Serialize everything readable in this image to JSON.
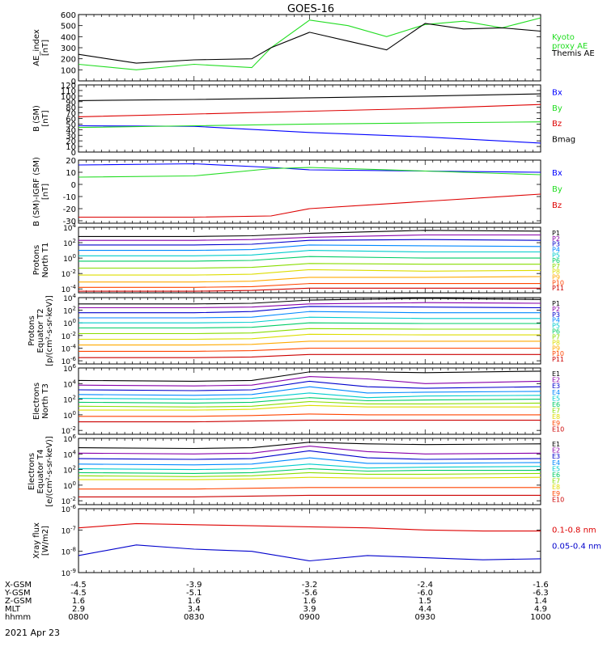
{
  "title": "GOES-16",
  "date_label": "2021 Apr 23",
  "orbit_table": {
    "row_labels": [
      "X-GSM",
      "Y-GSM",
      "Z-GSM",
      "MLT",
      "hhmm"
    ],
    "columns": [
      [
        "-4.5",
        "-4.5",
        "1.6",
        "2.9",
        "0800"
      ],
      [
        "-3.9",
        "-5.1",
        "1.6",
        "3.4",
        "0830"
      ],
      [
        "-3.2",
        "-5.6",
        "1.6",
        "3.9",
        "0900"
      ],
      [
        "-2.4",
        "-6.0",
        "1.5",
        "4.4",
        "0930"
      ],
      [
        "-1.6",
        "-6.3",
        "1.4",
        "4.9",
        "1000"
      ]
    ]
  },
  "chart_data": [
    {
      "type": "line",
      "ylabel": "AE_index\n[nT]",
      "ylim": [
        0,
        600
      ],
      "yticks": [
        0,
        100,
        200,
        300,
        400,
        500,
        600
      ],
      "tick_labels": [
        "0",
        "100",
        "200",
        "300",
        "400",
        "500",
        "600"
      ],
      "x": [
        "0800",
        "0815",
        "0830",
        "0845",
        "0850",
        "0900",
        "0910",
        "0920",
        "0930",
        "0940",
        "0950",
        "1000"
      ],
      "series": [
        {
          "name": "Kyoto\nproxy AE",
          "color": "#22dd22",
          "values": [
            150,
            100,
            150,
            120,
            300,
            550,
            500,
            400,
            510,
            540,
            480,
            570
          ]
        },
        {
          "name": "Themis AE",
          "color": "#000000",
          "values": [
            240,
            160,
            190,
            200,
            300,
            440,
            360,
            280,
            520,
            470,
            480,
            450
          ]
        }
      ]
    },
    {
      "type": "line",
      "ylabel": "B (SM)\n[nT]",
      "ylim": [
        0,
        120
      ],
      "yticks": [
        0,
        10,
        20,
        30,
        40,
        50,
        60,
        70,
        80,
        90,
        100,
        110,
        120
      ],
      "tick_labels": [
        "0",
        "10",
        "20",
        "30",
        "40",
        "50",
        "60",
        "70",
        "80",
        "90",
        "100",
        "110",
        "120"
      ],
      "x": [
        "0800",
        "0830",
        "0900",
        "0930",
        "1000"
      ],
      "series": [
        {
          "name": "Bx",
          "color": "#0000ff",
          "values": [
            47,
            46,
            35,
            27,
            16
          ]
        },
        {
          "name": "By",
          "color": "#22dd22",
          "values": [
            44,
            47,
            50,
            52,
            54
          ]
        },
        {
          "name": "Bz",
          "color": "#dd0000",
          "values": [
            63,
            68,
            73,
            78,
            85
          ]
        },
        {
          "name": "Bmag",
          "color": "#000000",
          "values": [
            92,
            94,
            97,
            100,
            104
          ]
        }
      ]
    },
    {
      "type": "line",
      "ylabel": "B (SM)-IGRF (SM)\n[nT]",
      "ylim": [
        -32,
        20
      ],
      "yticks": [
        -30,
        -20,
        -10,
        0,
        10,
        20
      ],
      "tick_labels": [
        "-30",
        "-20",
        "-10",
        "0",
        "10",
        "20"
      ],
      "x": [
        "0800",
        "0830",
        "0850",
        "0900",
        "0930",
        "1000"
      ],
      "series": [
        {
          "name": "Bx",
          "color": "#0000ff",
          "values": [
            16,
            17,
            14,
            12,
            11,
            10
          ]
        },
        {
          "name": "By",
          "color": "#22dd22",
          "values": [
            6,
            7,
            13,
            14,
            11,
            8
          ]
        },
        {
          "name": "Bz",
          "color": "#dd0000",
          "values": [
            -27,
            -27,
            -26,
            -20,
            -14,
            -8
          ]
        }
      ]
    },
    {
      "type": "line",
      "log": true,
      "ylabel": "Protons\nNorth T1",
      "ylim": [
        -4.5,
        4
      ],
      "yticks": [
        -4,
        -2,
        0,
        2,
        4
      ],
      "tick_labels": [
        "10-4",
        "10-2",
        "100",
        "102",
        "104"
      ],
      "x": [
        "0800",
        "0830",
        "0845",
        "0900",
        "0930",
        "1000"
      ],
      "series": [
        {
          "name": "P1",
          "color": "#000000",
          "values": [
            2.8,
            2.8,
            2.9,
            3.2,
            3.6,
            3.5
          ]
        },
        {
          "name": "P2",
          "color": "#8800aa",
          "values": [
            2.3,
            2.3,
            2.4,
            2.7,
            3.0,
            3.0
          ]
        },
        {
          "name": "P3",
          "color": "#0000cc",
          "values": [
            1.7,
            1.7,
            1.8,
            2.3,
            2.4,
            2.3
          ]
        },
        {
          "name": "P4",
          "color": "#0088ff",
          "values": [
            1.0,
            1.0,
            1.1,
            1.7,
            1.6,
            1.5
          ]
        },
        {
          "name": "P5",
          "color": "#00cccc",
          "values": [
            0.3,
            0.3,
            0.4,
            1.0,
            0.8,
            0.8
          ]
        },
        {
          "name": "P6",
          "color": "#00cc66",
          "values": [
            -0.4,
            -0.4,
            -0.3,
            0.2,
            0.0,
            0.0
          ]
        },
        {
          "name": "P7",
          "color": "#88dd00",
          "values": [
            -1.3,
            -1.3,
            -1.2,
            -0.7,
            -0.8,
            -0.8
          ]
        },
        {
          "name": "P8",
          "color": "#dddd00",
          "values": [
            -2.2,
            -2.2,
            -2.1,
            -1.5,
            -1.7,
            -1.6
          ]
        },
        {
          "name": "P9",
          "color": "#ffaa00",
          "values": [
            -3.1,
            -3.1,
            -3.0,
            -2.5,
            -2.5,
            -2.4
          ]
        },
        {
          "name": "P10",
          "color": "#ff4400",
          "values": [
            -3.8,
            -3.8,
            -3.7,
            -3.3,
            -3.3,
            -3.3
          ]
        },
        {
          "name": "P11",
          "color": "#cc0000",
          "values": [
            -4.3,
            -4.3,
            -4.2,
            -3.9,
            -3.9,
            -3.9
          ]
        }
      ]
    },
    {
      "type": "line",
      "log": true,
      "ylabel": "Protons\nEquator T2\n[p/(cm²-s-sr-keV)]",
      "ylim": [
        -6.5,
        4
      ],
      "yticks": [
        -6,
        -4,
        -2,
        0,
        2,
        4
      ],
      "tick_labels": [
        "10-6",
        "10-4",
        "10-2",
        "100",
        "102",
        "104"
      ],
      "x": [
        "0800",
        "0830",
        "0845",
        "0900",
        "0930",
        "1000"
      ],
      "series": [
        {
          "name": "P1",
          "color": "#000000",
          "values": [
            3.0,
            3.0,
            3.1,
            3.6,
            3.9,
            3.7
          ]
        },
        {
          "name": "P2",
          "color": "#8800aa",
          "values": [
            2.4,
            2.4,
            2.5,
            3.0,
            3.2,
            3.1
          ]
        },
        {
          "name": "P3",
          "color": "#0000cc",
          "values": [
            1.6,
            1.6,
            1.8,
            2.6,
            2.5,
            2.4
          ]
        },
        {
          "name": "P4",
          "color": "#0088ff",
          "values": [
            0.8,
            0.8,
            0.9,
            1.8,
            1.6,
            1.6
          ]
        },
        {
          "name": "P5",
          "color": "#00cccc",
          "values": [
            0.0,
            0.0,
            0.1,
            0.9,
            0.7,
            0.7
          ]
        },
        {
          "name": "P6",
          "color": "#00cc66",
          "values": [
            -0.8,
            -0.8,
            -0.7,
            0.0,
            -0.1,
            -0.1
          ]
        },
        {
          "name": "P7",
          "color": "#88dd00",
          "values": [
            -1.7,
            -1.7,
            -1.6,
            -0.9,
            -1.0,
            -1.0
          ]
        },
        {
          "name": "P8",
          "color": "#dddd00",
          "values": [
            -2.6,
            -2.6,
            -2.5,
            -1.8,
            -1.9,
            -1.9
          ]
        },
        {
          "name": "P9",
          "color": "#ffaa00",
          "values": [
            -3.5,
            -3.5,
            -3.4,
            -2.9,
            -2.9,
            -2.9
          ]
        },
        {
          "name": "P10",
          "color": "#ff4400",
          "values": [
            -4.5,
            -4.5,
            -4.4,
            -4.0,
            -4.0,
            -4.0
          ]
        },
        {
          "name": "P11",
          "color": "#cc0000",
          "values": [
            -5.5,
            -5.5,
            -5.4,
            -5.0,
            -5.0,
            -5.0
          ]
        }
      ]
    },
    {
      "type": "line",
      "log": true,
      "ylabel": "Electrons\nNorth T3",
      "ylim": [
        -2.5,
        6
      ],
      "yticks": [
        -2,
        0,
        2,
        4,
        6
      ],
      "tick_labels": [
        "10-2",
        "100",
        "102",
        "104",
        "106"
      ],
      "x": [
        "0800",
        "0830",
        "0845",
        "0900",
        "0915",
        "0930",
        "1000"
      ],
      "series": [
        {
          "name": "E1",
          "color": "#000000",
          "values": [
            4.4,
            4.3,
            4.4,
            5.5,
            5.5,
            5.4,
            5.6
          ]
        },
        {
          "name": "E2",
          "color": "#8800aa",
          "values": [
            3.8,
            3.7,
            3.8,
            4.9,
            4.6,
            4.0,
            4.3
          ]
        },
        {
          "name": "E3",
          "color": "#0000cc",
          "values": [
            3.2,
            3.1,
            3.2,
            4.3,
            3.6,
            3.4,
            3.6
          ]
        },
        {
          "name": "E4",
          "color": "#0088ff",
          "values": [
            2.6,
            2.5,
            2.6,
            3.6,
            2.8,
            2.9,
            3.0
          ]
        },
        {
          "name": "E5",
          "color": "#00cccc",
          "values": [
            2.1,
            2.0,
            2.1,
            2.8,
            2.2,
            2.4,
            2.5
          ]
        },
        {
          "name": "E6",
          "color": "#00cc66",
          "values": [
            1.6,
            1.5,
            1.6,
            2.2,
            1.8,
            1.9,
            2.0
          ]
        },
        {
          "name": "E7",
          "color": "#88dd00",
          "values": [
            1.1,
            1.0,
            1.1,
            1.7,
            1.4,
            1.4,
            1.5
          ]
        },
        {
          "name": "E8",
          "color": "#dddd00",
          "values": [
            0.6,
            0.6,
            0.7,
            1.2,
            1.0,
            1.0,
            1.0
          ]
        },
        {
          "name": "E9",
          "color": "#ff4400",
          "values": [
            -0.2,
            -0.2,
            -0.1,
            0.1,
            0.0,
            0.0,
            0.0
          ]
        },
        {
          "name": "E10",
          "color": "#cc0000",
          "values": [
            -0.9,
            -0.9,
            -0.8,
            -0.7,
            -0.7,
            -0.7,
            -0.7
          ]
        }
      ]
    },
    {
      "type": "line",
      "log": true,
      "ylabel": "Electrons\nEquator T4\n[e/(cm²-s-sr-keV)]",
      "ylim": [
        -2.5,
        6
      ],
      "yticks": [
        -2,
        0,
        2,
        4,
        6
      ],
      "tick_labels": [
        "10-2",
        "100",
        "102",
        "104",
        "106"
      ],
      "x": [
        "0800",
        "0830",
        "0845",
        "0900",
        "0915",
        "0930",
        "1000"
      ],
      "series": [
        {
          "name": "E1",
          "color": "#000000",
          "values": [
            4.8,
            4.7,
            4.8,
            5.5,
            5.3,
            5.2,
            5.3
          ]
        },
        {
          "name": "E2",
          "color": "#8800aa",
          "values": [
            4.1,
            4.0,
            4.1,
            5.0,
            4.3,
            4.0,
            4.1
          ]
        },
        {
          "name": "E3",
          "color": "#0000cc",
          "values": [
            3.4,
            3.3,
            3.4,
            4.4,
            3.5,
            3.3,
            3.4
          ]
        },
        {
          "name": "E4",
          "color": "#0088ff",
          "values": [
            2.7,
            2.6,
            2.7,
            3.5,
            2.8,
            2.8,
            2.9
          ]
        },
        {
          "name": "E5",
          "color": "#00cccc",
          "values": [
            2.1,
            2.0,
            2.1,
            2.7,
            2.2,
            2.3,
            2.4
          ]
        },
        {
          "name": "E6",
          "color": "#00cc66",
          "values": [
            1.6,
            1.5,
            1.6,
            2.1,
            1.8,
            1.9,
            1.9
          ]
        },
        {
          "name": "E7",
          "color": "#88dd00",
          "values": [
            1.2,
            1.1,
            1.2,
            1.6,
            1.4,
            1.4,
            1.5
          ]
        },
        {
          "name": "E8",
          "color": "#dddd00",
          "values": [
            0.7,
            0.7,
            0.8,
            1.0,
            0.9,
            0.9,
            1.0
          ]
        },
        {
          "name": "E9",
          "color": "#ff4400",
          "values": [
            -0.5,
            -0.5,
            -0.4,
            -0.3,
            -0.3,
            -0.3,
            -0.3
          ]
        },
        {
          "name": "E10",
          "color": "#cc0000",
          "values": [
            -1.5,
            -1.5,
            -1.4,
            -1.3,
            -1.3,
            -1.3,
            -1.3
          ]
        }
      ]
    },
    {
      "type": "line",
      "log": true,
      "ylabel": "Xray flux\n[W/m2]",
      "ylim": [
        -9,
        -6
      ],
      "yticks": [
        -9,
        -8,
        -7,
        -6
      ],
      "tick_labels": [
        "10-9",
        "10-8",
        "10-7",
        "10-6"
      ],
      "x": [
        "0800",
        "0815",
        "0830",
        "0845",
        "0900",
        "0915",
        "0930",
        "0945",
        "1000"
      ],
      "series": [
        {
          "name": "0.1-0.8 nm",
          "color": "#dd0000",
          "values": [
            -6.9,
            -6.7,
            -6.75,
            -6.8,
            -6.85,
            -6.9,
            -7.0,
            -7.05,
            -7.05
          ]
        },
        {
          "name": "0.05-0.4 nm",
          "color": "#0000cc",
          "values": [
            -8.2,
            -7.7,
            -7.9,
            -8.0,
            -8.45,
            -8.2,
            -8.3,
            -8.4,
            -8.35
          ]
        }
      ]
    }
  ]
}
